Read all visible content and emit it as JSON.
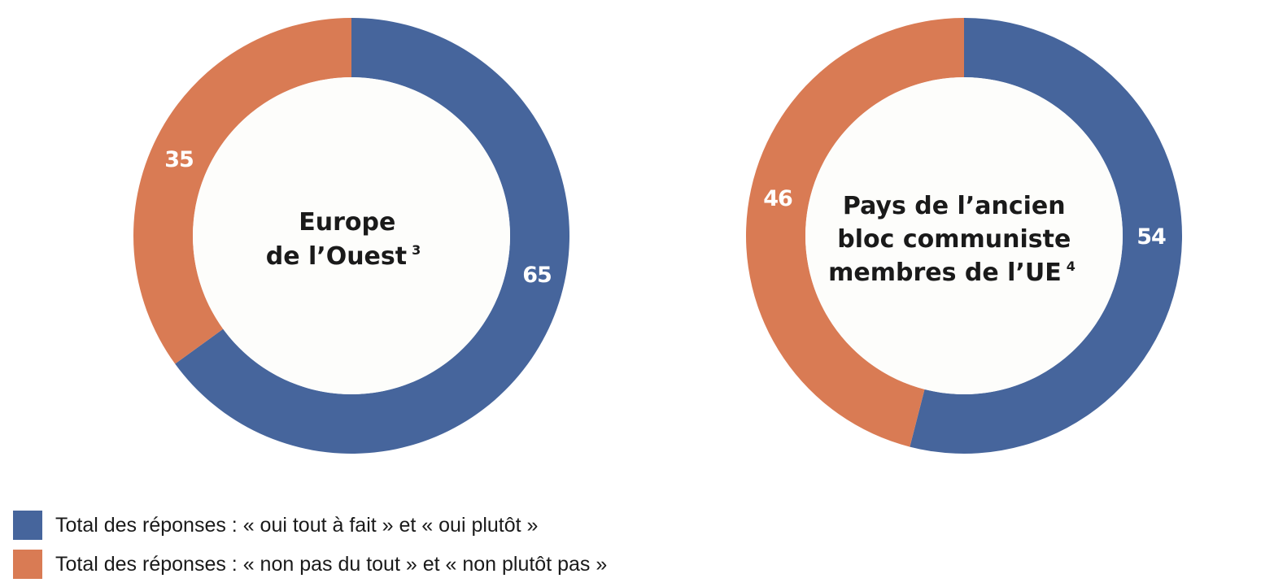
{
  "chart_data": [
    {
      "type": "pie",
      "donut": true,
      "title": "Europe de l’Ouest",
      "title_lines": [
        "Europe",
        "de l’Ouest"
      ],
      "footnote": "3",
      "categories": [
        "Total des réponses : « oui tout à fait » et « oui plutôt »",
        "Total des réponses : « non pas du tout » et « non plutôt pas »"
      ],
      "values": [
        65,
        35
      ],
      "labels": [
        "65",
        "35"
      ]
    },
    {
      "type": "pie",
      "donut": true,
      "title": "Pays de l’ancien bloc communiste membres de l’UE",
      "title_lines": [
        "Pays de l’ancien",
        "bloc communiste",
        "membres de l’UE"
      ],
      "footnote": "4",
      "categories": [
        "Total des réponses : « oui tout à fait » et « oui plutôt »",
        "Total des réponses : « non pas du tout » et « non plutôt pas »"
      ],
      "values": [
        54,
        46
      ],
      "labels": [
        "54",
        "46"
      ]
    }
  ],
  "legend": {
    "placement": "bottom-left",
    "items": [
      {
        "label": "Total des réponses : « oui tout à fait » et « oui plutôt »",
        "color": "#46659c"
      },
      {
        "label": "Total des réponses : « non pas du tout » et « non plutôt pas »",
        "color": "#d97b54"
      }
    ]
  },
  "colors": {
    "yes": "#46659c",
    "no": "#d97b54"
  }
}
